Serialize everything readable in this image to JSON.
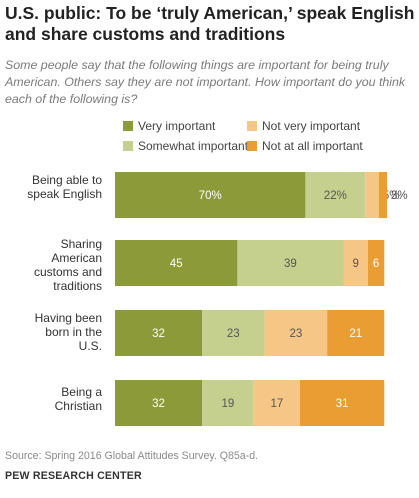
{
  "title": "U.S. public: To be ‘truly American,’ speak English and share customs and traditions",
  "subtitle": "Some people say that the following things are important for being truly American. Others say they are not important. How important do you think each of the following is?",
  "source": "Source: Spring 2016 Global Attitudes Survey. Q85a-d.",
  "brand": "PEW RESEARCH CENTER",
  "colors": {
    "very_important": "#8c9a3a",
    "somewhat_important": "#c5d08e",
    "not_very_important": "#f6c686",
    "not_at_all_important": "#e99d32"
  },
  "chart_data": {
    "type": "bar",
    "orientation": "horizontal",
    "stacked": true,
    "legend_position": "top",
    "categories": [
      "Being able to speak English",
      "Sharing American customs and traditions",
      "Having been born in the U.S.",
      "Being a Christian"
    ],
    "series": [
      {
        "name": "Very important",
        "values": [
          70,
          45,
          32,
          32
        ],
        "labels": [
          "70%",
          "45",
          "32",
          "32"
        ]
      },
      {
        "name": "Somewhat important",
        "values": [
          22,
          39,
          23,
          19
        ],
        "labels": [
          "22%",
          "39",
          "23",
          "19"
        ]
      },
      {
        "name": "Not very important",
        "values": [
          5,
          9,
          23,
          17
        ],
        "labels": [
          "5%",
          "9",
          "23",
          "17"
        ]
      },
      {
        "name": "Not at all important",
        "values": [
          3,
          6,
          21,
          31
        ],
        "labels": [
          "3%",
          "6",
          "21",
          "31"
        ]
      }
    ]
  }
}
